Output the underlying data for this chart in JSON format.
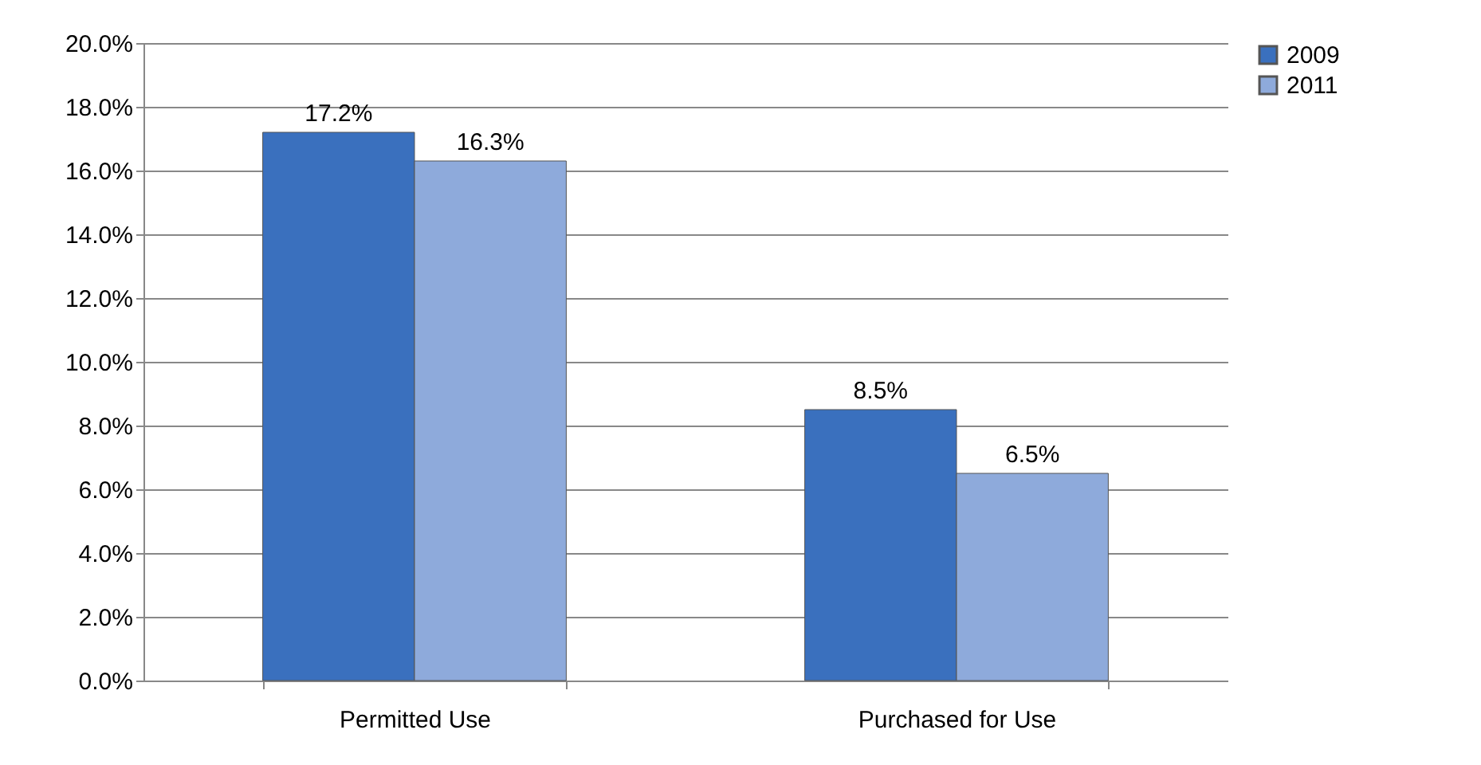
{
  "chart_data": {
    "type": "bar",
    "categories": [
      "Permitted Use",
      "Purchased for Use"
    ],
    "series": [
      {
        "name": "2009",
        "color": "#3a70be",
        "values": [
          17.2,
          8.5
        ],
        "value_labels": [
          "17.2%",
          "8.5%"
        ]
      },
      {
        "name": "2011",
        "color": "#8eaadb",
        "values": [
          16.3,
          6.5
        ],
        "value_labels": [
          "16.3%",
          "6.5%"
        ]
      }
    ],
    "ylim": [
      0,
      20
    ],
    "yticks": [
      {
        "value": 0,
        "label": "0.0%"
      },
      {
        "value": 2,
        "label": "2.0%"
      },
      {
        "value": 4,
        "label": "4.0%"
      },
      {
        "value": 6,
        "label": "6.0%"
      },
      {
        "value": 8,
        "label": "8.0%"
      },
      {
        "value": 10,
        "label": "10.0%"
      },
      {
        "value": 12,
        "label": "12.0%"
      },
      {
        "value": 14,
        "label": "14.0%"
      },
      {
        "value": 16,
        "label": "16.0%"
      },
      {
        "value": 18,
        "label": "18.0%"
      },
      {
        "value": 20,
        "label": "20.0%"
      }
    ],
    "grid": "y",
    "legend": "right"
  }
}
